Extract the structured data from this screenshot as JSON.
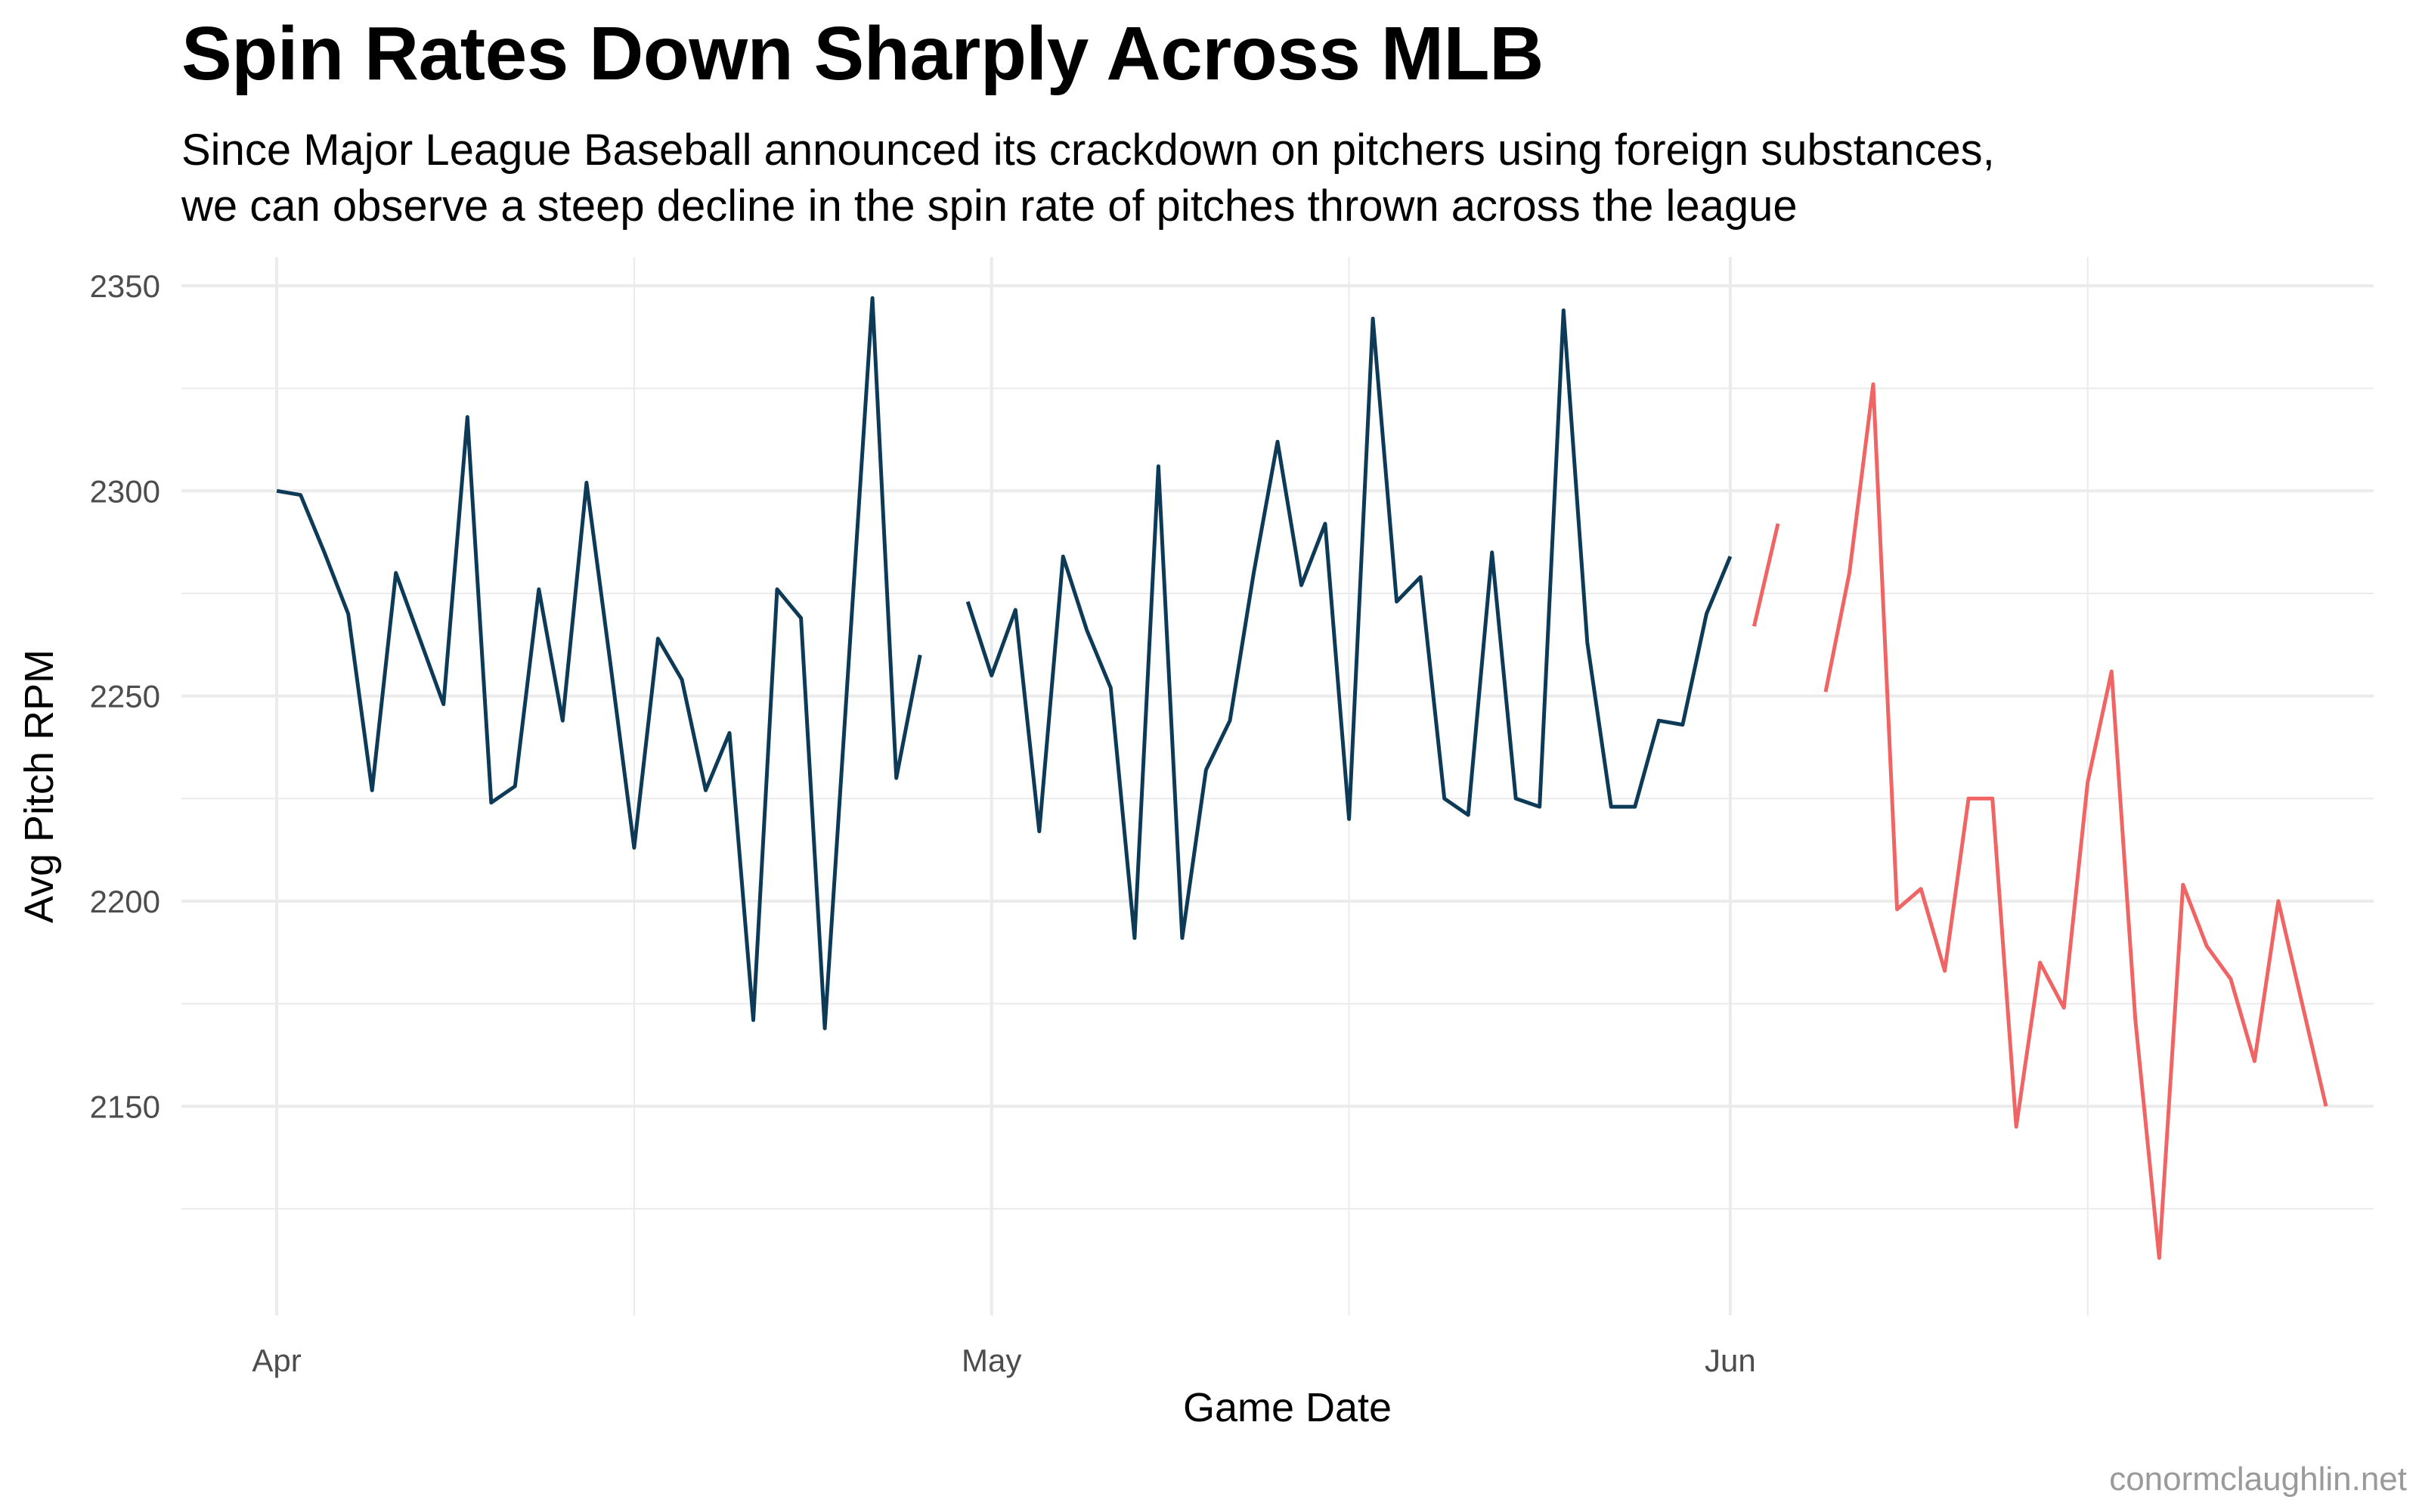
{
  "title": "Spin Rates Down Sharply Across MLB",
  "subtitle_lines": [
    "Since Major League Baseball announced its crackdown on pitchers using foreign substances,",
    "we can observe a steep decline in the spin rate of pitches thrown across the league"
  ],
  "caption": "conormclaughlin.net",
  "colors": {
    "before": "#0d3b57",
    "after": "#f06464",
    "grid": "#ebebeb",
    "tick_text": "#4d4d4d"
  },
  "chart_data": {
    "type": "line",
    "title": "Spin Rates Down Sharply Across MLB",
    "xlabel": "Game Date",
    "ylabel": "Avg Pitch RPM",
    "x_start_date": "2021-04-01",
    "xlim": [
      -4,
      88
    ],
    "ylim": [
      2099,
      2357
    ],
    "grid": true,
    "legend": "none",
    "x_ticks": [
      {
        "label": "Apr",
        "day": 0
      },
      {
        "label": "May",
        "day": 30
      },
      {
        "label": "Jun",
        "day": 61
      }
    ],
    "x_minor_days": [
      15,
      45,
      76
    ],
    "y_ticks": [
      2150,
      2200,
      2250,
      2300,
      2350
    ],
    "y_minor": [
      2125,
      2175,
      2225,
      2275,
      2325
    ],
    "series": [
      {
        "name": "before",
        "color": "#0d3b57",
        "segments": [
          [
            [
              0,
              2300
            ],
            [
              1,
              2299
            ],
            [
              2,
              2285
            ],
            [
              3,
              2270
            ],
            [
              4,
              2227
            ],
            [
              5,
              2280
            ],
            [
              6,
              2264
            ],
            [
              7,
              2248
            ],
            [
              8,
              2318
            ],
            [
              9,
              2224
            ],
            [
              10,
              2228
            ],
            [
              11,
              2276
            ],
            [
              12,
              2244
            ],
            [
              13,
              2302
            ],
            [
              14,
              2258
            ],
            [
              15,
              2213
            ],
            [
              16,
              2264
            ],
            [
              17,
              2254
            ],
            [
              18,
              2227
            ],
            [
              19,
              2241
            ],
            [
              20,
              2171
            ],
            [
              21,
              2276
            ],
            [
              22,
              2269
            ],
            [
              23,
              2169
            ],
            [
              24,
              2258
            ],
            [
              25,
              2347
            ],
            [
              26,
              2230
            ],
            [
              27,
              2260
            ]
          ],
          [
            [
              29,
              2273
            ],
            [
              30,
              2255
            ],
            [
              31,
              2271
            ],
            [
              32,
              2217
            ],
            [
              33,
              2284
            ],
            [
              34,
              2266
            ],
            [
              35,
              2252
            ],
            [
              36,
              2191
            ],
            [
              37,
              2306
            ],
            [
              38,
              2191
            ],
            [
              39,
              2232
            ],
            [
              40,
              2244
            ],
            [
              41,
              2280
            ],
            [
              42,
              2312
            ],
            [
              43,
              2277
            ],
            [
              44,
              2292
            ],
            [
              45,
              2220
            ],
            [
              46,
              2342
            ],
            [
              47,
              2273
            ],
            [
              48,
              2279
            ],
            [
              49,
              2225
            ],
            [
              50,
              2221
            ],
            [
              51,
              2285
            ],
            [
              52,
              2225
            ],
            [
              53,
              2223
            ],
            [
              54,
              2344
            ],
            [
              55,
              2263
            ],
            [
              56,
              2223
            ],
            [
              57,
              2223
            ],
            [
              58,
              2244
            ],
            [
              59,
              2243
            ],
            [
              60,
              2270
            ],
            [
              61,
              2284
            ]
          ]
        ]
      },
      {
        "name": "after",
        "color": "#f06464",
        "segments": [
          [
            [
              62,
              2267
            ],
            [
              63,
              2292
            ]
          ],
          [
            [
              65,
              2251
            ],
            [
              66,
              2280
            ],
            [
              67,
              2326
            ],
            [
              68,
              2198
            ],
            [
              69,
              2203
            ],
            [
              70,
              2183
            ],
            [
              71,
              2225
            ],
            [
              72,
              2225
            ],
            [
              73,
              2145
            ],
            [
              74,
              2185
            ],
            [
              75,
              2174
            ],
            [
              76,
              2229
            ],
            [
              77,
              2256
            ],
            [
              78,
              2171
            ],
            [
              79,
              2113
            ],
            [
              80,
              2204
            ],
            [
              81,
              2189
            ],
            [
              82,
              2181
            ],
            [
              83,
              2161
            ],
            [
              84,
              2200
            ],
            [
              85,
              2175
            ],
            [
              86,
              2150
            ]
          ]
        ]
      }
    ]
  }
}
